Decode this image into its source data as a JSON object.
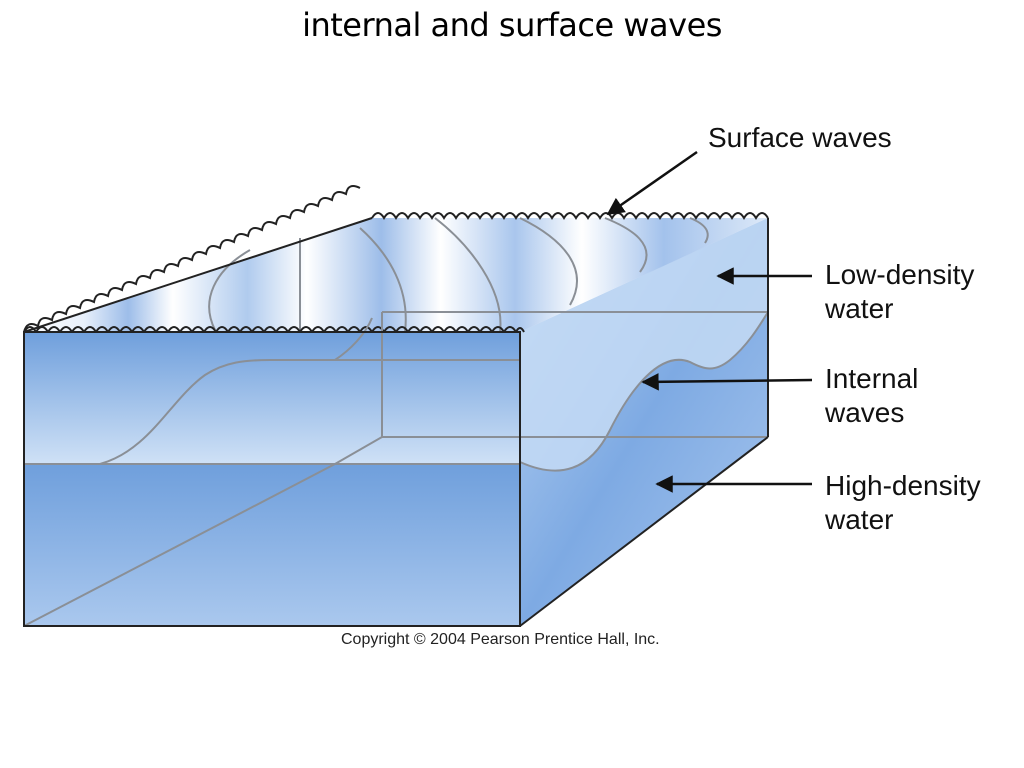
{
  "title": "internal and surface waves",
  "labels": {
    "surface_waves": "Surface waves",
    "low_density_line1": "Low-density",
    "low_density_line2": "water",
    "internal_line1": "Internal",
    "internal_line2": "waves",
    "high_density_line1": "High-density",
    "high_density_line2": "water"
  },
  "copyright": "Copyright © 2004 Pearson Prentice Hall, Inc.",
  "colors": {
    "water_light": "#d7e6f8",
    "water_mid": "#9cc0ea",
    "water_deep": "#6f9fdc",
    "outline": "#222222",
    "interface_line": "#8a8f96"
  }
}
